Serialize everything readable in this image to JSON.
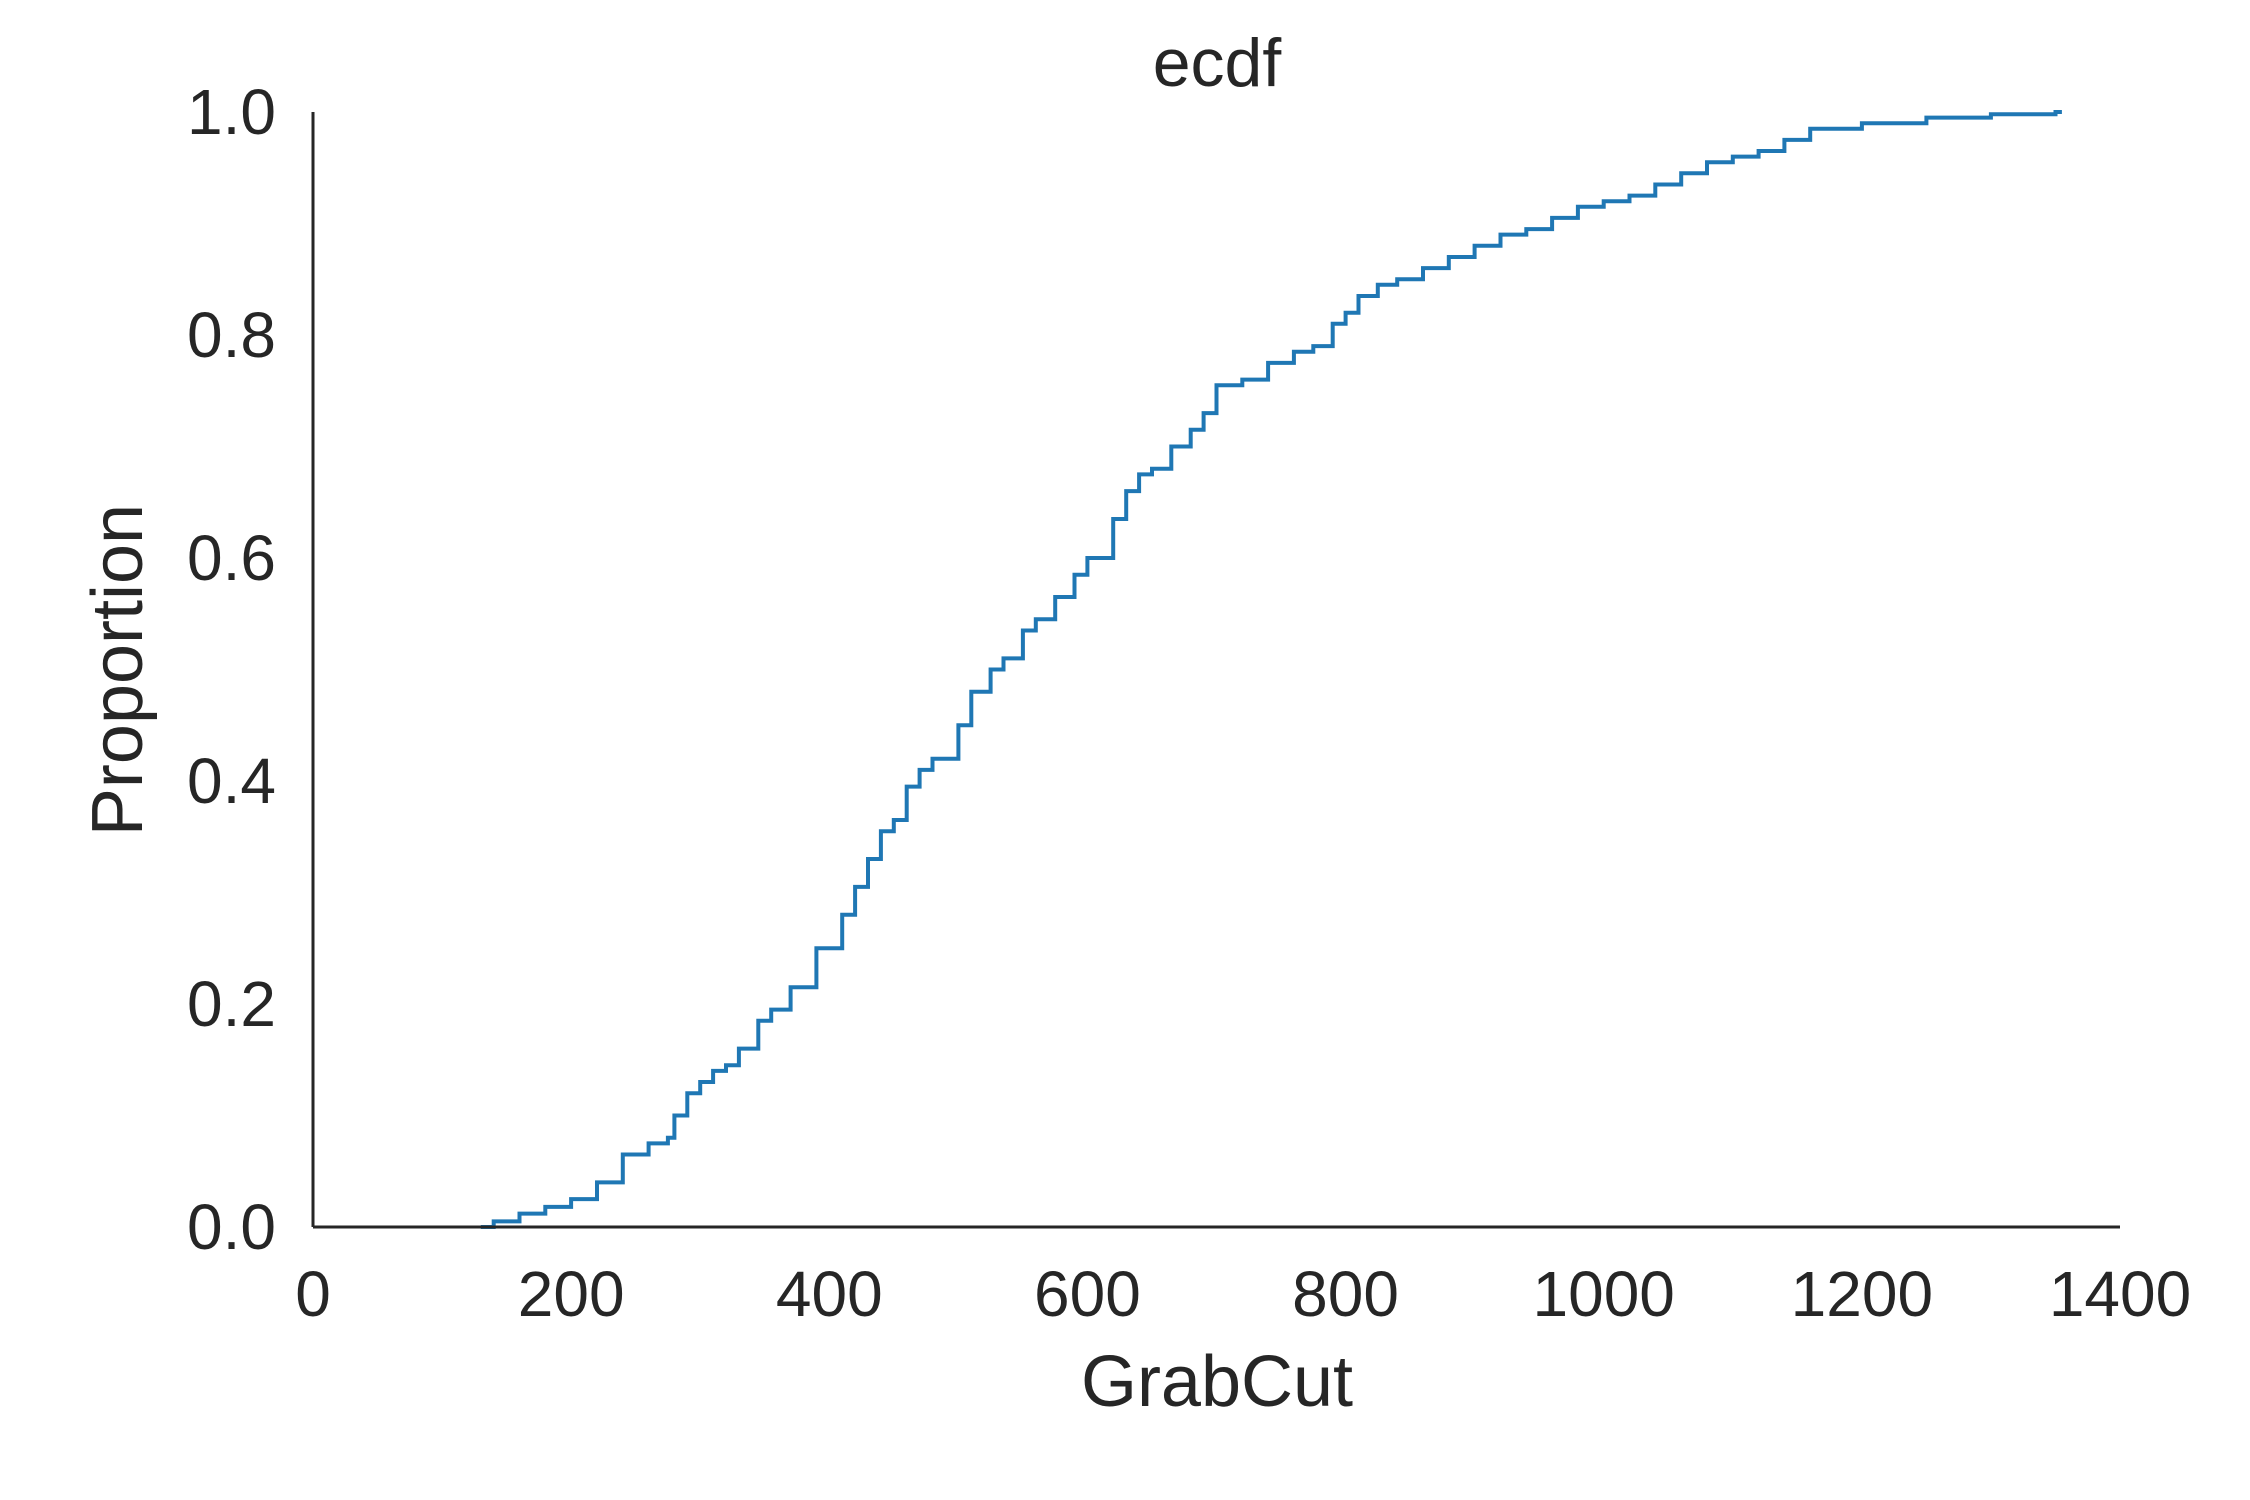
{
  "chart_data": {
    "type": "line",
    "title": "ecdf",
    "xlabel": "GrabCut",
    "ylabel": "Proportion",
    "xlim": [
      0,
      1400
    ],
    "ylim": [
      0,
      1.0
    ],
    "x_ticks": [
      "0",
      "200",
      "400",
      "600",
      "800",
      "1000",
      "1200",
      "1400"
    ],
    "y_ticks": [
      "0.0",
      "0.2",
      "0.4",
      "0.6",
      "0.8",
      "1.0"
    ],
    "grid": false,
    "line_color": "#1f77b4",
    "series": [
      {
        "x": [
          130,
          140,
          160,
          180,
          200,
          220,
          240,
          260,
          275,
          280,
          290,
          300,
          310,
          320,
          330,
          345,
          355,
          370,
          390,
          410,
          420,
          430,
          440,
          450,
          460,
          470,
          480,
          500,
          510,
          525,
          535,
          550,
          560,
          575,
          590,
          600,
          620,
          630,
          640,
          650,
          665,
          680,
          690,
          700,
          720,
          740,
          760,
          775,
          790,
          800,
          810,
          825,
          840,
          860,
          880,
          900,
          920,
          940,
          960,
          980,
          1000,
          1020,
          1040,
          1060,
          1080,
          1100,
          1120,
          1140,
          1160,
          1200,
          1250,
          1300,
          1350,
          1355
        ],
        "y": [
          0.0,
          0.005,
          0.012,
          0.018,
          0.025,
          0.04,
          0.065,
          0.075,
          0.08,
          0.1,
          0.12,
          0.13,
          0.14,
          0.145,
          0.16,
          0.185,
          0.195,
          0.215,
          0.25,
          0.28,
          0.305,
          0.33,
          0.355,
          0.365,
          0.395,
          0.41,
          0.42,
          0.45,
          0.48,
          0.5,
          0.51,
          0.535,
          0.545,
          0.565,
          0.585,
          0.6,
          0.635,
          0.66,
          0.675,
          0.68,
          0.7,
          0.715,
          0.73,
          0.755,
          0.76,
          0.775,
          0.785,
          0.79,
          0.81,
          0.82,
          0.835,
          0.845,
          0.85,
          0.86,
          0.87,
          0.88,
          0.89,
          0.895,
          0.905,
          0.915,
          0.92,
          0.925,
          0.935,
          0.945,
          0.955,
          0.96,
          0.965,
          0.975,
          0.985,
          0.99,
          0.995,
          0.998,
          1.0,
          1.0
        ]
      }
    ]
  }
}
